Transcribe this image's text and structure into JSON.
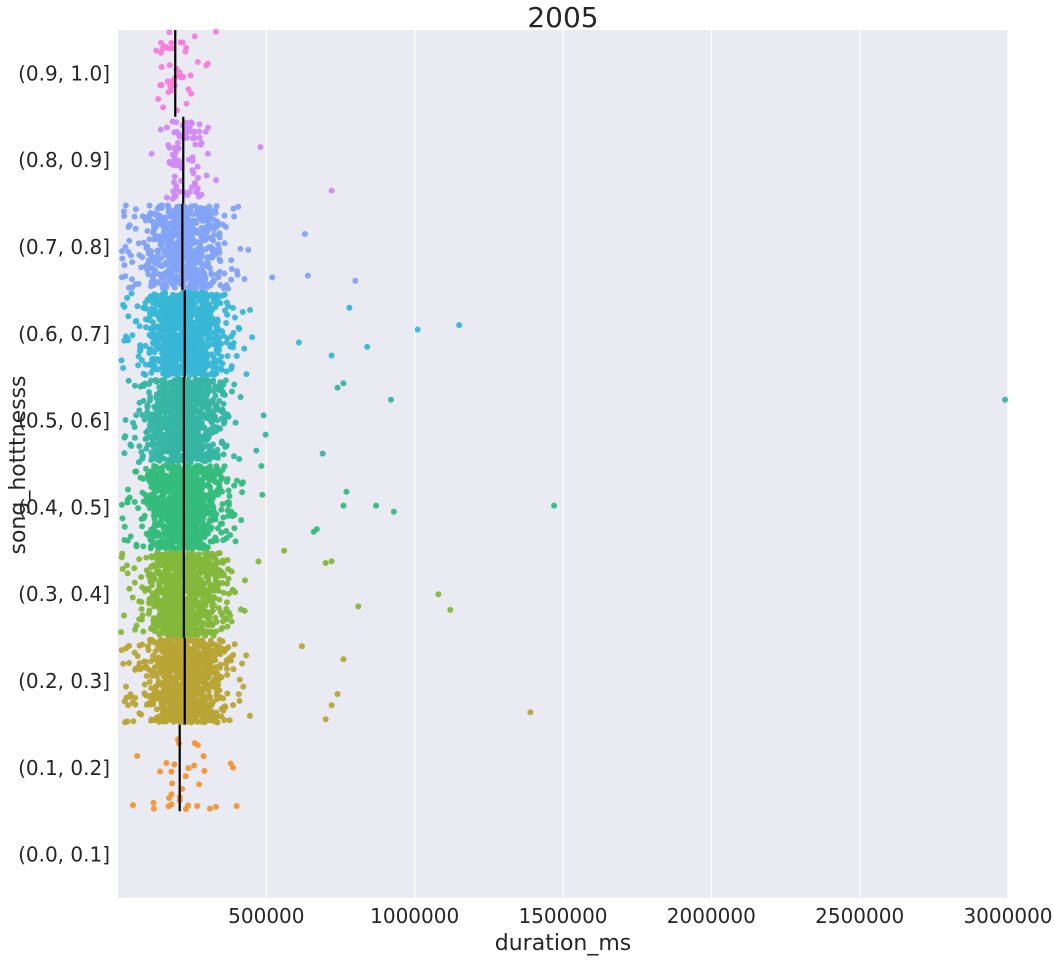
{
  "chart_data": {
    "type": "scatter",
    "subtype": "strip plot with median lines (horizontal, categorical y)",
    "title": "2005",
    "xlabel": "duration_ms",
    "ylabel": "song_hotttnesss",
    "xlim": [
      0,
      3000000
    ],
    "x_ticks": [
      500000,
      1000000,
      1500000,
      2000000,
      2500000,
      3000000
    ],
    "x_tick_labels": [
      "500000",
      "1000000",
      "1500000",
      "2000000",
      "2500000",
      "3000000"
    ],
    "grid": "vertical, white",
    "background": "#eaeaf2",
    "categories": [
      "(0.9, 1.0]",
      "(0.8, 0.9]",
      "(0.7, 0.8]",
      "(0.6, 0.7]",
      "(0.5, 0.6]",
      "(0.4, 0.5]",
      "(0.3, 0.4]",
      "(0.2, 0.3]",
      "(0.1, 0.2]",
      "(0.0, 0.1]"
    ],
    "series": [
      {
        "category": "(0.9, 1.0]",
        "color": "#f77cdb",
        "approx_count": 40,
        "median": 193000,
        "x_range": [
          120000,
          330000
        ],
        "outliers": [
          [
            330000,
            -0.48
          ]
        ]
      },
      {
        "category": "(0.8, 0.9]",
        "color": "#d08af6",
        "approx_count": 90,
        "median": 220000,
        "x_range": [
          110000,
          330000
        ],
        "outliers": [
          [
            480000,
            -0.15
          ],
          [
            720000,
            0.35
          ]
        ]
      },
      {
        "category": "(0.7, 0.8]",
        "color": "#82a3f5",
        "approx_count": 650,
        "median": 217000,
        "x_range": [
          10000,
          420000
        ],
        "outliers": [
          [
            520000,
            0.35
          ],
          [
            640000,
            0.33
          ],
          [
            800000,
            0.39
          ],
          [
            630000,
            -0.15
          ]
        ]
      },
      {
        "category": "(0.6, 0.7]",
        "color": "#38b6d6",
        "approx_count": 1500,
        "median": 225000,
        "x_range": [
          10000,
          380000
        ],
        "outliers": [
          [
            1150000,
            -0.1
          ],
          [
            1010000,
            -0.05
          ],
          [
            840000,
            0.15
          ],
          [
            780000,
            -0.3
          ],
          [
            720000,
            0.25
          ],
          [
            610000,
            0.1
          ]
        ]
      },
      {
        "category": "(0.5, 0.6]",
        "color": "#36b5a4",
        "approx_count": 2000,
        "median": 222000,
        "x_range": [
          10000,
          380000
        ],
        "outliers": [
          [
            2990000,
            -0.24
          ],
          [
            920000,
            -0.24
          ],
          [
            760000,
            -0.43
          ],
          [
            740000,
            -0.38
          ],
          [
            690000,
            0.38
          ]
        ]
      },
      {
        "category": "(0.4, 0.5]",
        "color": "#34bc7b",
        "approx_count": 2300,
        "median": 222000,
        "x_range": [
          10000,
          380000
        ],
        "outliers": [
          [
            1470000,
            -0.02
          ],
          [
            930000,
            0.05
          ],
          [
            870000,
            -0.02
          ],
          [
            770000,
            -0.18
          ],
          [
            760000,
            -0.02
          ],
          [
            670000,
            0.25
          ],
          [
            660000,
            0.28
          ]
        ]
      },
      {
        "category": "(0.3, 0.4]",
        "color": "#83b73a",
        "approx_count": 2000,
        "median": 222000,
        "x_range": [
          10000,
          380000
        ],
        "outliers": [
          [
            1120000,
            0.18
          ],
          [
            1080000,
            0.0
          ],
          [
            810000,
            0.14
          ],
          [
            720000,
            -0.38
          ],
          [
            700000,
            -0.36
          ],
          [
            560000,
            -0.5
          ]
        ]
      },
      {
        "category": "(0.2, 0.3]",
        "color": "#b8a435",
        "approx_count": 2000,
        "median": 225000,
        "x_range": [
          10000,
          380000
        ],
        "outliers": [
          [
            1390000,
            0.36
          ],
          [
            760000,
            -0.25
          ],
          [
            700000,
            0.44
          ],
          [
            740000,
            0.15
          ],
          [
            720000,
            0.28
          ],
          [
            620000,
            -0.4
          ]
        ]
      },
      {
        "category": "(0.1, 0.2]",
        "color": "#f29433",
        "approx_count": 30,
        "median": 208000,
        "x_range": [
          40000,
          400000
        ],
        "outliers": [
          [
            400000,
            0.44
          ],
          [
            380000,
            -0.05
          ],
          [
            330000,
            0.45
          ],
          [
            310000,
            0.47
          ]
        ]
      },
      {
        "category": "(0.0, 0.1]",
        "color": "#f77189",
        "approx_count": 0,
        "median": null,
        "x_range": null,
        "outliers": []
      }
    ]
  }
}
